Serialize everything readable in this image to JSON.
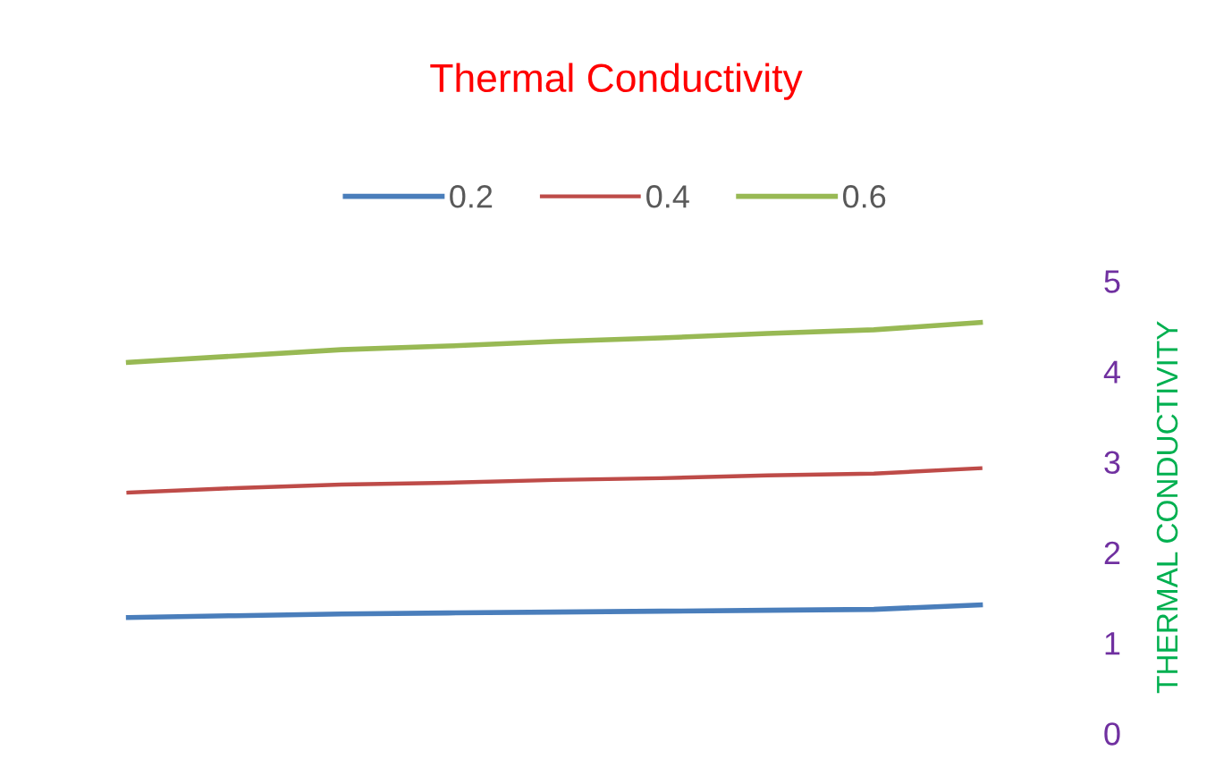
{
  "chart_data": {
    "type": "line",
    "title": "Thermal Conductivity",
    "ylabel": "THERMAL CONDUCTIVITY",
    "categories": [
      null,
      null,
      null,
      null,
      null,
      null,
      null,
      null,
      null
    ],
    "series": [
      {
        "name": "0.2",
        "color": "#4a7ebb",
        "values": [
          1.28,
          1.3,
          1.32,
          1.33,
          1.34,
          1.35,
          1.36,
          1.37,
          1.42
        ]
      },
      {
        "name": "0.4",
        "color": "#be4b48",
        "values": [
          2.66,
          2.71,
          2.75,
          2.77,
          2.8,
          2.82,
          2.85,
          2.87,
          2.93
        ]
      },
      {
        "name": "0.6",
        "color": "#98b954",
        "values": [
          4.1,
          4.17,
          4.24,
          4.28,
          4.33,
          4.37,
          4.42,
          4.46,
          4.54
        ]
      }
    ],
    "ylim": [
      0,
      5
    ],
    "yticks": [
      0,
      1,
      2,
      3,
      4,
      5
    ],
    "grid": false,
    "legend": "top",
    "marker": "none",
    "line_style": "solid"
  }
}
